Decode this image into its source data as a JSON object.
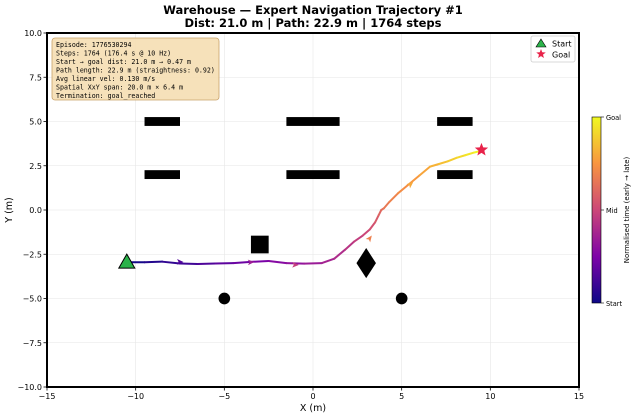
{
  "chart_data": {
    "type": "line",
    "title": "Warehouse — Expert Navigation Trajectory #1",
    "subtitle": "Dist: 21.0 m  |  Path: 22.9 m  |  1764 steps",
    "xlabel": "X (m)",
    "ylabel": "Y (m)",
    "xlim": [
      -15,
      15
    ],
    "ylim": [
      -10,
      10
    ],
    "xticks": [
      -15,
      -10,
      -5,
      0,
      5,
      10,
      15
    ],
    "yticks": [
      -10,
      -7.5,
      -5,
      -2.5,
      0,
      2.5,
      5,
      7.5,
      10
    ],
    "xtick_labels": [
      "−15",
      "−10",
      "−5",
      "0",
      "5",
      "10",
      "15"
    ],
    "ytick_labels": [
      "−10.0",
      "−7.5",
      "−5.0",
      "−2.5",
      "0.0",
      "2.5",
      "5.0",
      "7.5",
      "10.0"
    ],
    "grid": true,
    "trajectory": {
      "x": [
        -10.5,
        -9.5,
        -8.5,
        -7.5,
        -6.5,
        -5.5,
        -4.5,
        -3.5,
        -2.5,
        -1.5,
        -0.5,
        0.5,
        1.2,
        1.8,
        2.3,
        2.8,
        3.2,
        3.5,
        3.7,
        3.85,
        4.0,
        4.3,
        4.8,
        5.4,
        6.0,
        6.6,
        7.1,
        7.6,
        8.1,
        8.6,
        9.1,
        9.5
      ],
      "y": [
        -2.95,
        -2.95,
        -2.92,
        -3.02,
        -3.05,
        -3.02,
        -3.0,
        -2.93,
        -2.88,
        -3.0,
        -3.03,
        -3.0,
        -2.75,
        -2.25,
        -1.8,
        -1.45,
        -1.1,
        -0.7,
        -0.3,
        0.0,
        0.1,
        0.45,
        0.95,
        1.45,
        1.95,
        2.45,
        2.6,
        2.75,
        2.95,
        3.1,
        3.25,
        3.35
      ],
      "colormap": "plasma"
    },
    "direction_arrows": [
      {
        "x": -7.5,
        "y": -2.93
      },
      {
        "x": -3.5,
        "y": -2.95
      },
      {
        "x": -1.0,
        "y": -3.1
      },
      {
        "x": 3.2,
        "y": -1.6
      },
      {
        "x": 5.5,
        "y": 1.45
      }
    ],
    "start": {
      "x": -10.5,
      "y": -3.0
    },
    "goal": {
      "x": 9.5,
      "y": 3.4
    },
    "obstacles": [
      {
        "shape": "rect",
        "x": -8.5,
        "y": 5.0,
        "w": 2.0,
        "h": 0.5
      },
      {
        "shape": "rect",
        "x": 0.0,
        "y": 5.0,
        "w": 3.0,
        "h": 0.5
      },
      {
        "shape": "rect",
        "x": 8.0,
        "y": 5.0,
        "w": 2.0,
        "h": 0.5
      },
      {
        "shape": "rect",
        "x": -8.5,
        "y": 2.0,
        "w": 2.0,
        "h": 0.5
      },
      {
        "shape": "rect",
        "x": 0.0,
        "y": 2.0,
        "w": 3.0,
        "h": 0.5
      },
      {
        "shape": "rect",
        "x": 8.0,
        "y": 2.0,
        "w": 2.0,
        "h": 0.5
      },
      {
        "shape": "rect",
        "x": -3.0,
        "y": -1.95,
        "w": 1.0,
        "h": 1.0
      },
      {
        "shape": "diamond",
        "x": 3.0,
        "y": -3.0,
        "w": 1.0,
        "h": 1.0
      },
      {
        "shape": "circle",
        "x": -5.0,
        "y": -5.0,
        "w": 0.6,
        "h": 0.6
      },
      {
        "shape": "circle",
        "x": 5.0,
        "y": -5.0,
        "w": 0.6,
        "h": 0.6
      }
    ],
    "info_box": [
      "Episode: 1776530294",
      "Steps:  1764  (176.4 s @ 10 Hz)",
      "Start → goal dist: 21.0 m → 0.47 m",
      "Path length: 22.9 m  (straightness: 0.92)",
      "Avg linear vel: 0.130 m/s",
      "Spatial XxY span: 20.0 m × 6.4 m",
      "Termination: goal_reached"
    ],
    "legend": {
      "placement": "top-right",
      "entries": [
        {
          "label": "Start",
          "marker": "triangle",
          "color": "#2bb34a"
        },
        {
          "label": "Goal",
          "marker": "star",
          "color": "#e8234a"
        }
      ]
    },
    "colorbar": {
      "label": "Normalised time  (early → late)",
      "ticks": [
        "Start",
        "Mid",
        "Goal"
      ]
    }
  }
}
